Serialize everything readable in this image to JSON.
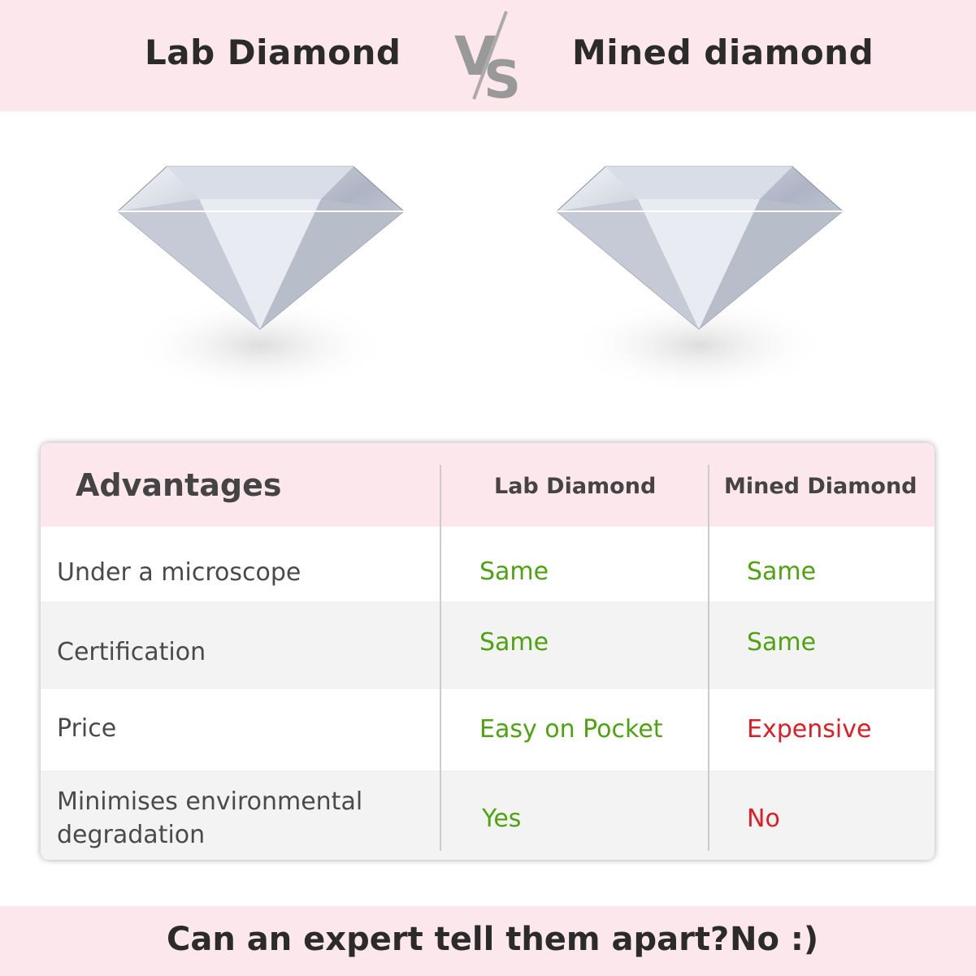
{
  "header": {
    "left_title": "Lab Diamond",
    "vs_logo": "VS",
    "right_title": "Mined diamond"
  },
  "images": [
    "diamond-image",
    "diamond-image"
  ],
  "table": {
    "headers": [
      "Advantages",
      "Lab Diamond",
      "Mined Diamond"
    ],
    "rows": [
      {
        "label": "Under a microscope",
        "lab": "Same",
        "mined": "Same"
      },
      {
        "label": "Certification",
        "lab": "Same",
        "mined": "Same"
      },
      {
        "label": "Price",
        "lab": "Easy on Pocket",
        "mined": "Expensive"
      },
      {
        "label": "Minimises environmental degradation",
        "lab": "Yes",
        "mined": "No"
      }
    ],
    "colors": {
      "positive": "#4ea40e",
      "negative": "#e31b23",
      "header_bg": "#fce8ec"
    }
  },
  "footer": {
    "question": "Can an expert tell them apart?",
    "answer": "No :)"
  }
}
